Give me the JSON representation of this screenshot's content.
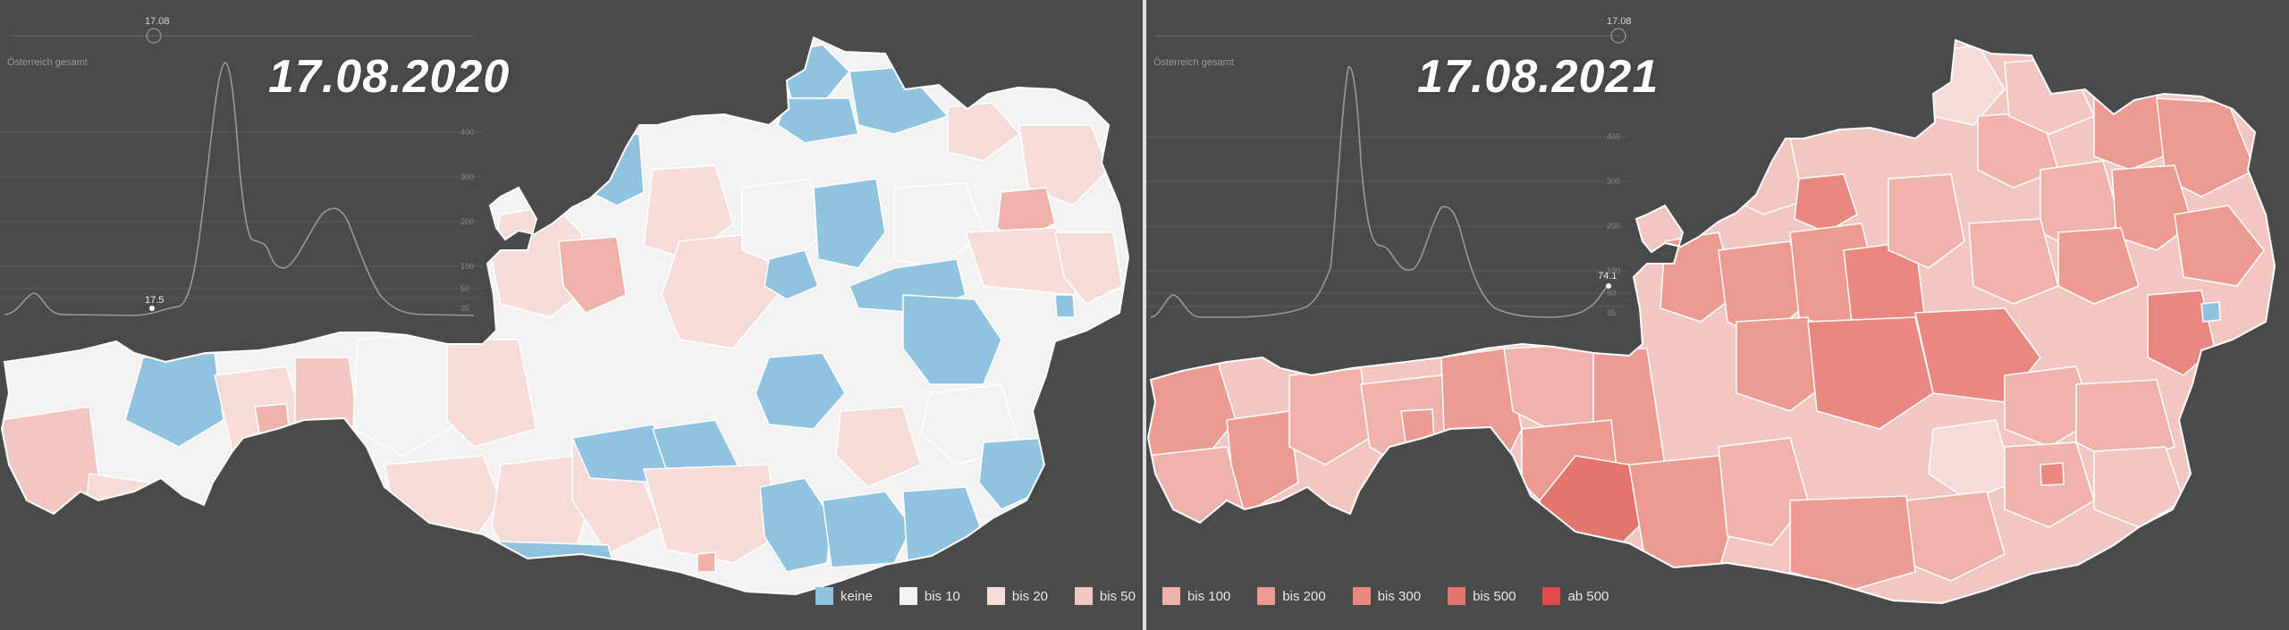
{
  "left_panel": {
    "date": "17.08.2020",
    "slider_value": "17.08",
    "chart_title": "Österreich gesamt",
    "curve_value": "17.5",
    "y_ticks": [
      "400",
      "300",
      "200",
      "100",
      "50",
      "35"
    ]
  },
  "right_panel": {
    "date": "17.08.2021",
    "slider_value": "17.08",
    "chart_title": "Österreich gesamt",
    "curve_value": "74.1",
    "y_ticks": [
      "400",
      "300",
      "200",
      "100",
      "50",
      "35"
    ]
  },
  "legend": {
    "items": [
      {
        "label": "keine",
        "color": "#8fc3df"
      },
      {
        "label": "bis 10",
        "color": "#f2f2f2"
      },
      {
        "label": "bis 20",
        "color": "#f5dcd9"
      },
      {
        "label": "bis 50",
        "color": "#f2c7c1"
      },
      {
        "label": "bis 100",
        "color": "#efb2aa"
      },
      {
        "label": "bis 200",
        "color": "#ec9b92"
      },
      {
        "label": "bis 300",
        "color": "#e88880"
      },
      {
        "label": "bis 500",
        "color": "#e4756e"
      },
      {
        "label": "ab 500",
        "color": "#e04a4a"
      }
    ]
  }
}
